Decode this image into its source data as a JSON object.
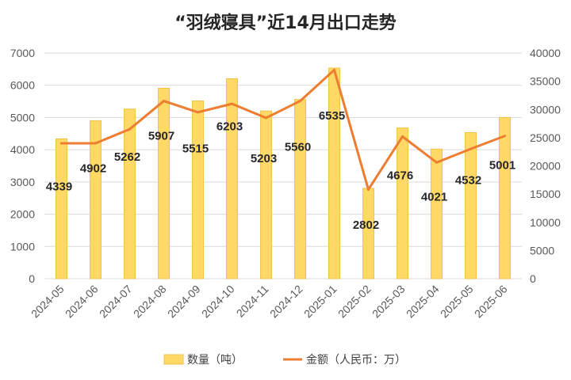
{
  "chart_data": {
    "type": "bar",
    "title": "“羽绒寝具”近14月出口走势",
    "categories": [
      "2024-05",
      "2024-06",
      "2024-07",
      "2024-08",
      "2024-09",
      "2024-10",
      "2024-11",
      "2024-12",
      "2025-01",
      "2025-02",
      "2025-03",
      "2025-04",
      "2025-05",
      "2025-06"
    ],
    "series": [
      {
        "name": "数量（吨）",
        "type": "bar",
        "axis": "left",
        "color": "#FFD966",
        "values": [
          4339,
          4902,
          5262,
          5907,
          5515,
          6203,
          5203,
          5560,
          6535,
          2802,
          4676,
          4021,
          4532,
          5001
        ]
      },
      {
        "name": "金额（人民币：万）",
        "type": "line",
        "axis": "right",
        "color": "#ED7D31",
        "values": [
          24000,
          24000,
          26500,
          31500,
          29500,
          31000,
          28500,
          31500,
          37000,
          15800,
          25200,
          20600,
          23000,
          25300
        ]
      }
    ],
    "y_left": {
      "min": 0,
      "max": 7000,
      "ticks": [
        0,
        1000,
        2000,
        3000,
        4000,
        5000,
        6000,
        7000
      ]
    },
    "y_right": {
      "min": 0,
      "max": 40000,
      "ticks": [
        0,
        5000,
        10000,
        15000,
        20000,
        25000,
        30000,
        35000,
        40000
      ]
    },
    "grid": true,
    "legend_position": "bottom"
  }
}
